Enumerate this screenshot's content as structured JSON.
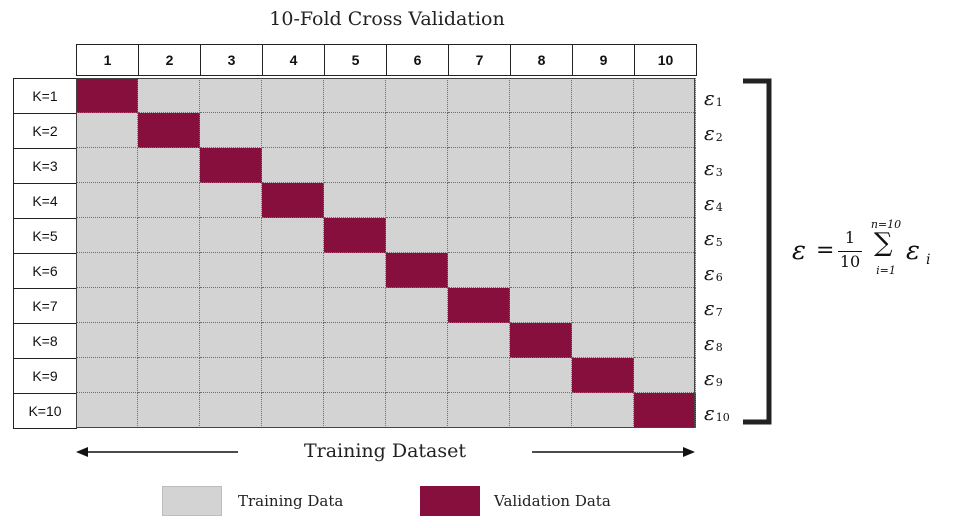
{
  "title": "10-Fold Cross Validation",
  "fold_headers": [
    "1",
    "2",
    "3",
    "4",
    "5",
    "6",
    "7",
    "8",
    "9",
    "10"
  ],
  "rows": [
    {
      "label": "K=1",
      "validation_fold": 1,
      "error": "ε",
      "error_sub": "1"
    },
    {
      "label": "K=2",
      "validation_fold": 2,
      "error": "ε",
      "error_sub": "2"
    },
    {
      "label": "K=3",
      "validation_fold": 3,
      "error": "ε",
      "error_sub": "3"
    },
    {
      "label": "K=4",
      "validation_fold": 4,
      "error": "ε",
      "error_sub": "4"
    },
    {
      "label": "K=5",
      "validation_fold": 5,
      "error": "ε",
      "error_sub": "5"
    },
    {
      "label": "K=6",
      "validation_fold": 6,
      "error": "ε",
      "error_sub": "6"
    },
    {
      "label": "K=7",
      "validation_fold": 7,
      "error": "ε",
      "error_sub": "7"
    },
    {
      "label": "K=8",
      "validation_fold": 8,
      "error": "ε",
      "error_sub": "8"
    },
    {
      "label": "K=9",
      "validation_fold": 9,
      "error": "ε",
      "error_sub": "9"
    },
    {
      "label": "K=10",
      "validation_fold": 10,
      "error": "ε",
      "error_sub": "10"
    }
  ],
  "formula": {
    "lhs": "ε",
    "equals": "=",
    "numerator": "1",
    "denominator": "10",
    "sum_symbol": "∑",
    "sum_upper": "n=10",
    "sum_lower": "i=1",
    "term": "ε",
    "term_sub": "i"
  },
  "dataset_label": "Training Dataset",
  "legend": {
    "training": "Training Data",
    "validation": "Validation Data"
  },
  "colors": {
    "training": "#d3d3d3",
    "validation": "#870f3e"
  }
}
